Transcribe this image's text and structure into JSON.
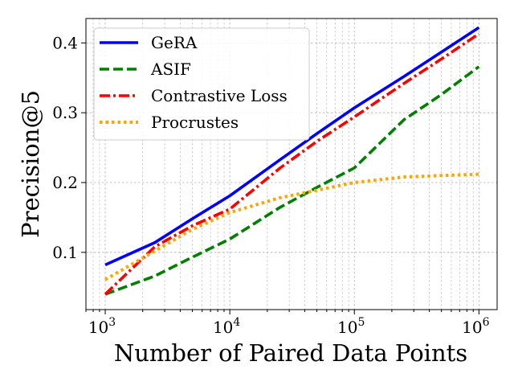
{
  "chart_data": {
    "type": "line",
    "title": "",
    "xlabel": "Number of Paired Data Points",
    "ylabel": "Precision@5",
    "xscale": "log",
    "xlim": [
      700,
      1400000
    ],
    "ylim": [
      0.018,
      0.435
    ],
    "grid": true,
    "legend_position": "top-left",
    "xticks": [
      {
        "value": 1000,
        "base": "10",
        "exp": "3"
      },
      {
        "value": 10000,
        "base": "10",
        "exp": "4"
      },
      {
        "value": 100000,
        "base": "10",
        "exp": "5"
      },
      {
        "value": 1000000,
        "base": "10",
        "exp": "6"
      }
    ],
    "yticks": [
      {
        "value": 0.1,
        "label": "0.1"
      },
      {
        "value": 0.2,
        "label": "0.2"
      },
      {
        "value": 0.3,
        "label": "0.3"
      },
      {
        "value": 0.4,
        "label": "0.4"
      }
    ],
    "x": [
      1000,
      2500,
      5000,
      10000,
      25000,
      50000,
      100000,
      250000,
      500000,
      1000000
    ],
    "series": [
      {
        "name": "GeRA",
        "color": "#0000ff",
        "style": "solid",
        "values": [
          0.082,
          0.114,
          0.148,
          0.181,
          0.232,
          0.27,
          0.307,
          0.352,
          0.387,
          0.422
        ]
      },
      {
        "name": "ASIF",
        "color": "#008000",
        "style": "dashed",
        "values": [
          0.04,
          0.066,
          0.093,
          0.119,
          0.164,
          0.193,
          0.221,
          0.29,
          0.326,
          0.366
        ]
      },
      {
        "name": "Contrastive Loss",
        "color": "#ff0000",
        "style": "dashdot",
        "values": [
          0.04,
          0.108,
          0.138,
          0.162,
          0.22,
          0.259,
          0.294,
          0.342,
          0.377,
          0.413
        ]
      },
      {
        "name": "Procrustes",
        "color": "#ffa500",
        "style": "dotted",
        "values": [
          0.061,
          0.102,
          0.133,
          0.157,
          0.178,
          0.189,
          0.2,
          0.208,
          0.21,
          0.212
        ]
      }
    ]
  }
}
